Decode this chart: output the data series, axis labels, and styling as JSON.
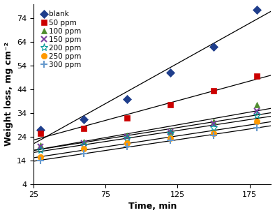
{
  "title": "",
  "xlabel": "Time, min",
  "ylabel": "Weight loss, mg cm⁻²",
  "xlim": [
    25,
    190
  ],
  "ylim": [
    4,
    80
  ],
  "xticks": [
    25,
    75,
    125,
    175
  ],
  "yticks": [
    4,
    14,
    24,
    34,
    44,
    54,
    64,
    74
  ],
  "series": [
    {
      "label": "blank",
      "x": [
        30,
        60,
        90,
        120,
        150,
        180
      ],
      "y": [
        27.0,
        31.5,
        40.0,
        51.0,
        62.0,
        77.5
      ],
      "color": "#1f3e8c",
      "marker": "D",
      "markersize": 6,
      "markerfacecolor": "#1f3e8c",
      "trendline": true
    },
    {
      "label": "50 ppm",
      "x": [
        30,
        60,
        90,
        120,
        150,
        180
      ],
      "y": [
        25.5,
        27.5,
        32.0,
        37.5,
        43.5,
        49.5
      ],
      "color": "#cc0000",
      "marker": "s",
      "markersize": 6,
      "markerfacecolor": "#cc0000",
      "trendline": true
    },
    {
      "label": "100 ppm",
      "x": [
        30,
        60,
        90,
        120,
        150,
        180
      ],
      "y": [
        20.5,
        22.0,
        24.5,
        26.5,
        30.5,
        37.5
      ],
      "color": "#4e8c2e",
      "marker": "^",
      "markersize": 6,
      "markerfacecolor": "#4e8c2e",
      "trendline": true
    },
    {
      "label": "150 ppm",
      "x": [
        30,
        60,
        90,
        120,
        150,
        180
      ],
      "y": [
        20.0,
        21.5,
        24.0,
        26.0,
        29.5,
        35.0
      ],
      "color": "#7b3fa0",
      "marker": "x",
      "markersize": 6,
      "markerfacecolor": "none",
      "trendline": true
    },
    {
      "label": "200 ppm",
      "x": [
        30,
        60,
        90,
        120,
        150,
        180
      ],
      "y": [
        18.5,
        20.5,
        23.5,
        25.5,
        28.0,
        33.0
      ],
      "color": "#009999",
      "marker": "*",
      "markersize": 8,
      "markerfacecolor": "none",
      "trendline": true
    },
    {
      "label": "250 ppm",
      "x": [
        30,
        60,
        90,
        120,
        150,
        180
      ],
      "y": [
        15.5,
        19.0,
        21.5,
        23.5,
        25.5,
        30.5
      ],
      "color": "#ff9900",
      "marker": "o",
      "markersize": 6,
      "markerfacecolor": "#ff9900",
      "trendline": true
    },
    {
      "label": "300 ppm",
      "x": [
        30,
        60,
        90,
        120,
        150,
        180
      ],
      "y": [
        14.0,
        17.0,
        20.0,
        22.5,
        24.5,
        28.0
      ],
      "color": "#6699cc",
      "marker": "+",
      "markersize": 7,
      "markerfacecolor": "none",
      "trendline": true
    }
  ],
  "background_color": "#ffffff",
  "legend_fontsize": 7.5,
  "axis_fontsize": 9,
  "tick_fontsize": 8
}
